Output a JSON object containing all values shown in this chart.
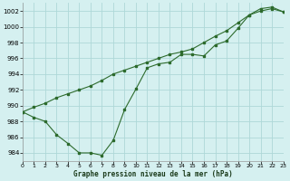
{
  "title": "Graphe pression niveau de la mer (hPa)",
  "background_color": "#d5f0f0",
  "grid_color": "#aed8d8",
  "line_color": "#2d6b2d",
  "marker_color": "#2d6b2d",
  "x_min": 0,
  "x_max": 23,
  "y_min": 983,
  "y_max": 1003,
  "yticks": [
    984,
    986,
    988,
    990,
    992,
    994,
    996,
    998,
    1000,
    1002
  ],
  "xticks": [
    0,
    1,
    2,
    3,
    4,
    5,
    6,
    7,
    8,
    9,
    10,
    11,
    12,
    13,
    14,
    15,
    16,
    17,
    18,
    19,
    20,
    21,
    22,
    23
  ],
  "series1_x": [
    0,
    1,
    2,
    3,
    4,
    5,
    6,
    7,
    8,
    9,
    10,
    11,
    12,
    13,
    14,
    15,
    16,
    17,
    18,
    19,
    20,
    21,
    22,
    23
  ],
  "series1_y": [
    989.2,
    988.5,
    988.0,
    986.3,
    985.2,
    984.0,
    984.0,
    983.7,
    985.6,
    989.5,
    992.1,
    994.8,
    995.3,
    995.5,
    996.5,
    996.5,
    996.3,
    997.7,
    998.2,
    999.8,
    1001.5,
    1002.3,
    1002.5,
    1001.9
  ],
  "series2_x": [
    0,
    1,
    2,
    3,
    4,
    5,
    6,
    7,
    8,
    9,
    10,
    11,
    12,
    13,
    14,
    15,
    16,
    17,
    18,
    19,
    20,
    21,
    22,
    23
  ],
  "series2_y": [
    989.2,
    989.8,
    990.3,
    991.0,
    991.5,
    992.0,
    992.5,
    993.2,
    994.0,
    994.5,
    995.0,
    995.5,
    996.0,
    996.5,
    996.8,
    997.2,
    998.0,
    998.8,
    999.5,
    1000.5,
    1001.5,
    1002.0,
    1002.3,
    1001.9
  ]
}
